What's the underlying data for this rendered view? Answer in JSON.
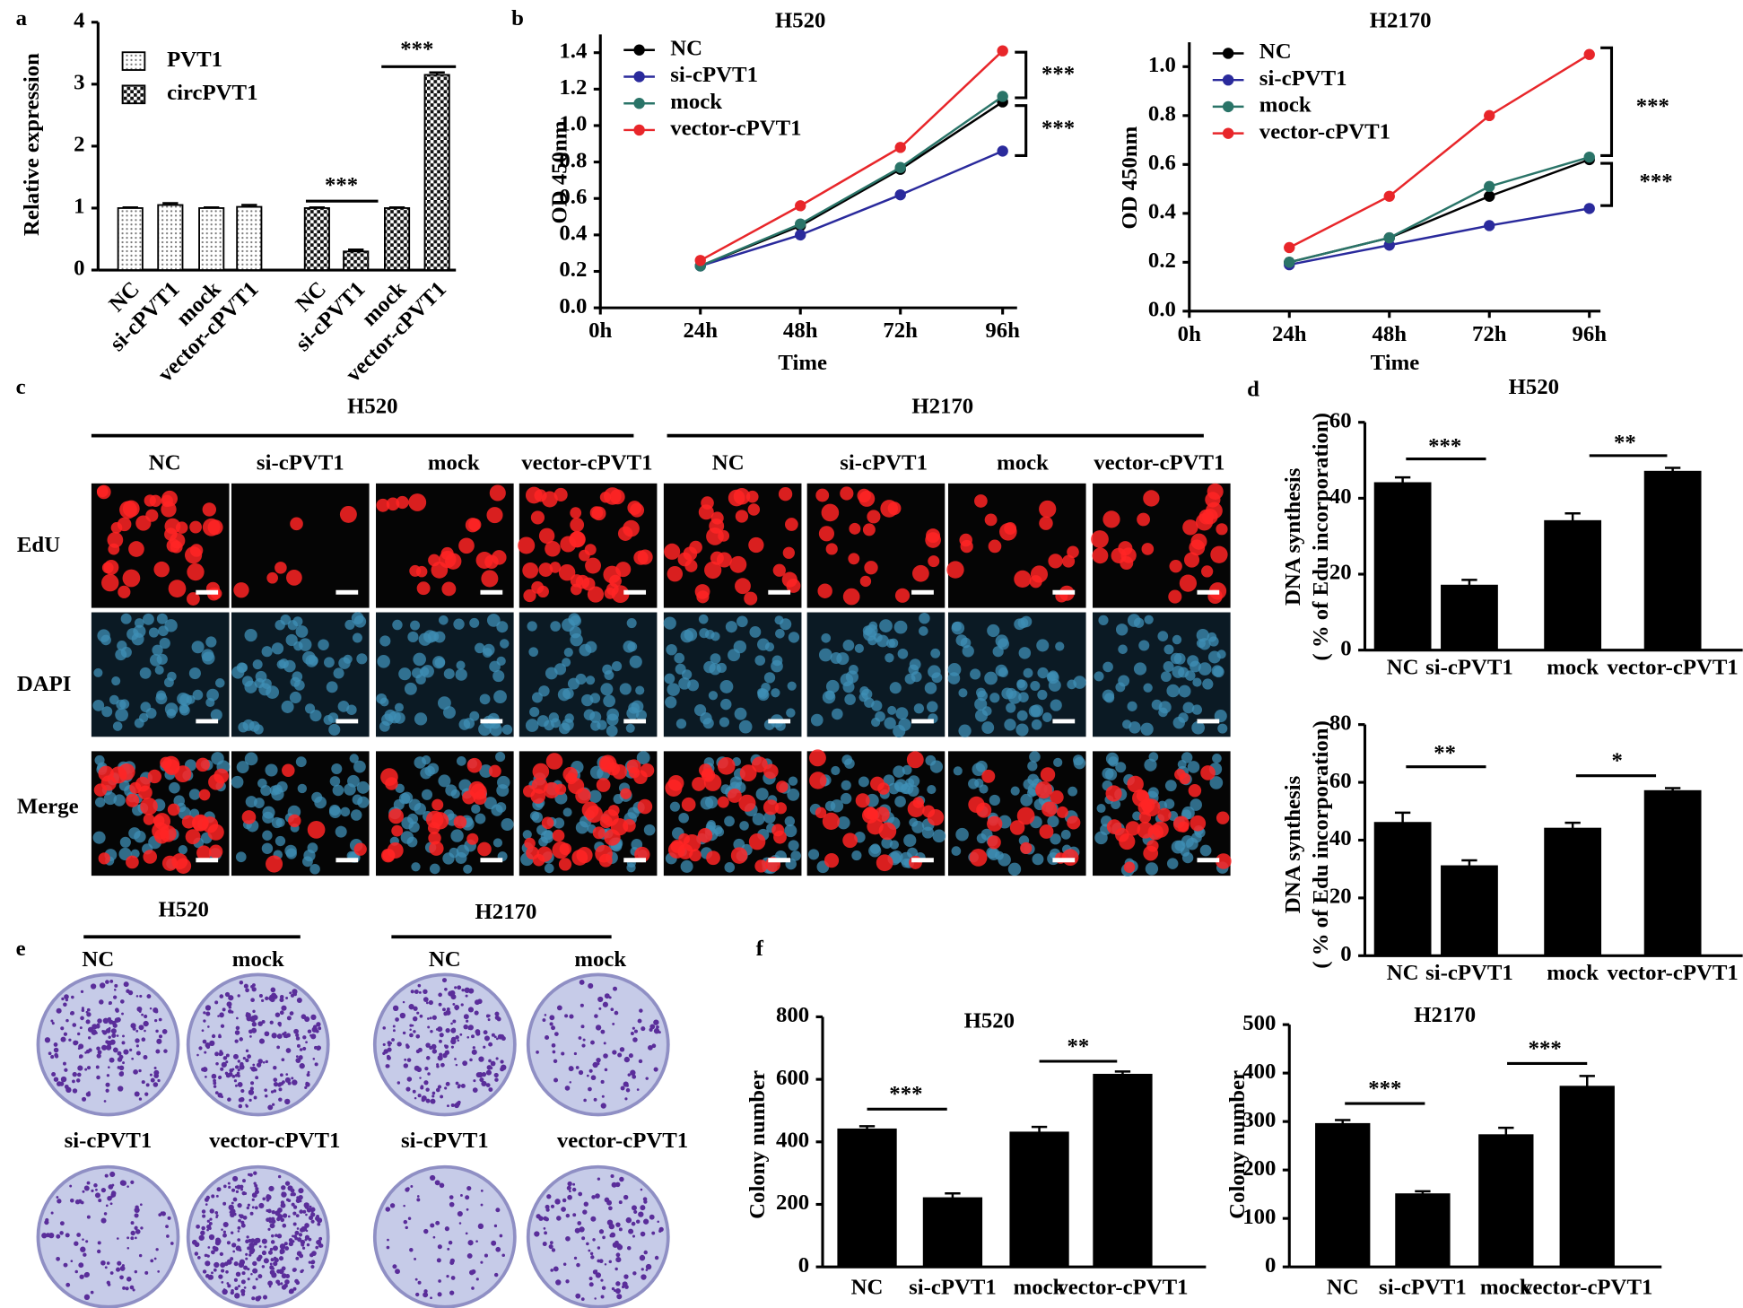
{
  "panel_labels": [
    "a",
    "b",
    "c",
    "d",
    "e",
    "f"
  ],
  "chart_data": [
    {
      "type": "bar",
      "ylabel": "Relative expression",
      "categories": [
        "NC",
        "si-cPVT1",
        "mock",
        "vector-cPVT1"
      ],
      "series": [
        {
          "name": "PVT1",
          "values": [
            1.0,
            1.05,
            1.0,
            1.02
          ],
          "errors": [
            0.01,
            0.03,
            0.01,
            0.03
          ]
        },
        {
          "name": "circPVT1",
          "values": [
            1.0,
            0.3,
            1.0,
            3.15
          ],
          "errors": [
            0.01,
            0.03,
            0.01,
            0.04
          ]
        }
      ],
      "ylim": [
        0,
        4
      ],
      "yticks": [
        0,
        1,
        2,
        3,
        4
      ],
      "annotations": [
        "***",
        "***"
      ]
    },
    {
      "type": "line",
      "title": "H520",
      "xlabel": "Time",
      "ylabel": "OD 450nm",
      "categories": [
        "0h",
        "24h",
        "48h",
        "72h",
        "96h"
      ],
      "series": [
        {
          "name": "NC",
          "color": "#000000",
          "values": [
            null,
            0.23,
            0.45,
            0.76,
            1.13
          ]
        },
        {
          "name": "si-cPVT1",
          "color": "#2a2a9c",
          "values": [
            null,
            0.23,
            0.4,
            0.62,
            0.86
          ]
        },
        {
          "name": "mock",
          "color": "#2a7468",
          "values": [
            null,
            0.23,
            0.46,
            0.77,
            1.16
          ]
        },
        {
          "name": "vector-cPVT1",
          "color": "#e8262a",
          "values": [
            null,
            0.26,
            0.56,
            0.88,
            1.41
          ]
        }
      ],
      "ylim": [
        0,
        1.5
      ],
      "yticks": [
        {
          "value": 0,
          "label": "0.0"
        },
        0.2,
        0.4,
        0.6,
        0.8,
        {
          "value": 1,
          "label": "1.0"
        },
        1.2,
        1.4
      ],
      "annotations": [
        "***",
        "***"
      ]
    },
    {
      "type": "line",
      "title": "H2170",
      "xlabel": "Time",
      "ylabel": "OD 450nm",
      "categories": [
        "0h",
        "24h",
        "48h",
        "72h",
        "96h"
      ],
      "series": [
        {
          "name": "NC",
          "color": "#000000",
          "values": [
            null,
            0.2,
            0.3,
            0.47,
            0.62
          ]
        },
        {
          "name": "si-cPVT1",
          "color": "#2a2a9c",
          "values": [
            null,
            0.19,
            0.27,
            0.35,
            0.42
          ]
        },
        {
          "name": "mock",
          "color": "#2a7468",
          "values": [
            null,
            0.2,
            0.3,
            0.51,
            0.63
          ]
        },
        {
          "name": "vector-cPVT1",
          "color": "#e8262a",
          "values": [
            null,
            0.26,
            0.47,
            0.8,
            1.05
          ]
        }
      ],
      "ylim": [
        0,
        1.1
      ],
      "yticks": [
        {
          "value": 0,
          "label": "0.0"
        },
        0.2,
        0.4,
        0.6,
        0.8,
        {
          "value": 1,
          "label": "1.0"
        }
      ],
      "annotations": [
        "***",
        "***"
      ]
    },
    {
      "type": "bar",
      "title": "H520",
      "ylabel": [
        "DNA synthesis",
        "( % of Edu incorporation)"
      ],
      "categories": [
        "NC",
        "si-cPVT1",
        "mock",
        "vector-cPVT1"
      ],
      "values": [
        44,
        17,
        34,
        47
      ],
      "errors": [
        1.5,
        1.5,
        2,
        1
      ],
      "color": "#000000",
      "ylim": [
        0,
        60
      ],
      "yticks": [
        0,
        20,
        40,
        60
      ],
      "annotations": [
        "***",
        "**"
      ]
    },
    {
      "type": "bar",
      "ylabel": [
        "DNA synthesis",
        "( % of Edu incorporation)"
      ],
      "categories": [
        "NC",
        "si-cPVT1",
        "mock",
        "vector-cPVT1"
      ],
      "values": [
        46,
        31,
        44,
        57
      ],
      "errors": [
        3.5,
        2,
        2,
        1
      ],
      "color": "#000000",
      "ylim": [
        0,
        80
      ],
      "yticks": [
        0,
        20,
        40,
        60,
        80
      ],
      "annotations": [
        "**",
        "*"
      ]
    },
    {
      "type": "bar",
      "title": "H520",
      "ylabel": "Colony number",
      "categories": [
        "NC",
        "si-cPVT1",
        "mock",
        "vector-cPVT1"
      ],
      "values": [
        440,
        220,
        430,
        615
      ],
      "errors": [
        10,
        15,
        18,
        10
      ],
      "color": "#000000",
      "ylim": [
        0,
        800
      ],
      "yticks": [
        0,
        200,
        400,
        600,
        800
      ],
      "annotations": [
        "***",
        "**"
      ]
    },
    {
      "type": "bar",
      "title": "H2170",
      "ylabel": "Colony number",
      "categories": [
        "NC",
        "si-cPVT1",
        "mock",
        "vector-cPVT1"
      ],
      "values": [
        295,
        150,
        272,
        372
      ],
      "errors": [
        8,
        6,
        15,
        22
      ],
      "color": "#000000",
      "ylim": [
        0,
        500
      ],
      "yticks": [
        0,
        100,
        200,
        300,
        400,
        500
      ],
      "annotations": [
        "***",
        "***"
      ]
    }
  ],
  "microscopy": {
    "groups": [
      "H520",
      "H2170"
    ],
    "columns": [
      "NC",
      "si-cPVT1",
      "mock",
      "vector-cPVT1",
      "NC",
      "si-cPVT1",
      "mock",
      "vector-cPVT1"
    ],
    "rows": [
      "EdU",
      "DAPI",
      "Merge"
    ]
  },
  "colony_plates": {
    "groups": [
      "H520",
      "H2170"
    ],
    "labels": [
      [
        "NC",
        "mock",
        "si-cPVT1",
        "vector-cPVT1"
      ],
      [
        "NC",
        "mock",
        "si-cPVT1",
        "vector-cPVT1"
      ]
    ]
  }
}
